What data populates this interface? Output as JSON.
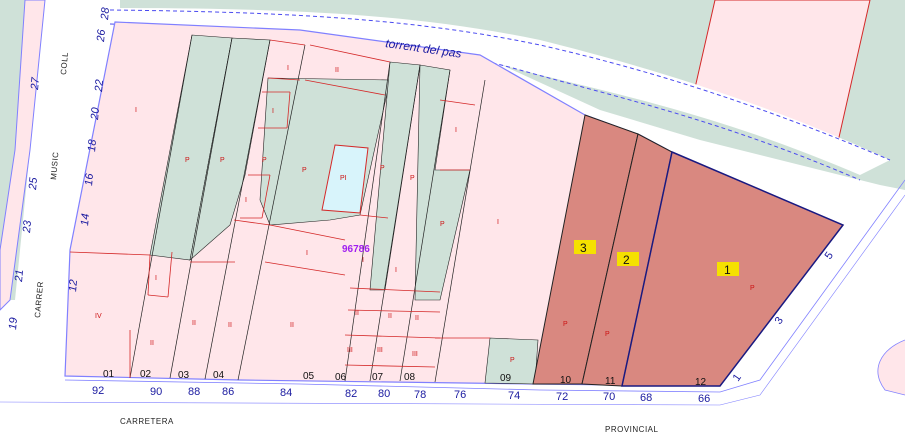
{
  "streets": {
    "carrer": "CARRER",
    "music": "MUSIC",
    "coll": "COLL",
    "carretera": "CARRETERA",
    "provincial": "PROVINCIAL"
  },
  "torrent": "torrent del pas",
  "cadastral_ref": "96786",
  "left_street_numbers": [
    "28",
    "26",
    "22",
    "20",
    "18",
    "16",
    "14",
    "12"
  ],
  "left_other_numbers": [
    "27",
    "25",
    "23",
    "21",
    "19"
  ],
  "bottom_numbers": [
    "92",
    "90",
    "88",
    "86",
    "84",
    "82",
    "80",
    "78",
    "76",
    "74",
    "72",
    "70",
    "68",
    "66"
  ],
  "right_numbers": [
    "1",
    "3",
    "5"
  ],
  "parcel_ids": [
    "01",
    "02",
    "03",
    "04",
    "05",
    "06",
    "07",
    "08",
    "09",
    "10",
    "11",
    "12"
  ],
  "badges": [
    "3",
    "2",
    "1"
  ],
  "floor_labels": {
    "I": "I",
    "II": "II",
    "III": "III",
    "IV": "IV",
    "P": "P",
    "PI": "PI"
  }
}
